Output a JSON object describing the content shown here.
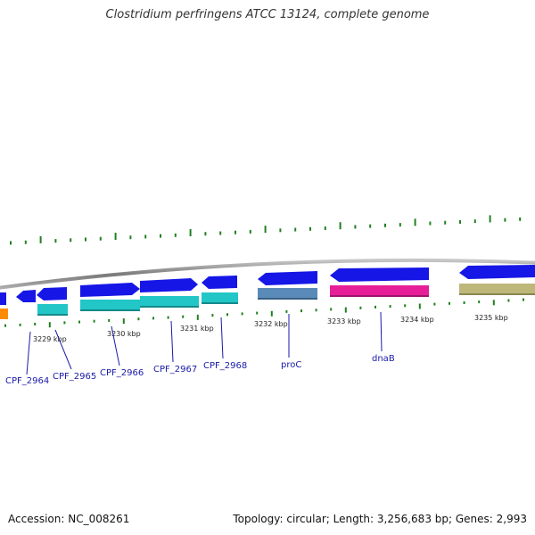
{
  "title": "Clostridium perfringens ATCC 13124, complete genome",
  "footer": {
    "accession": "Accession: NC_008261",
    "summary": "Topology: circular; Length: 3,256,683 bp; Genes: 2,993"
  },
  "colors": {
    "backbone": "#8a8a8a",
    "cds_forward": "#1616e6",
    "cds_reverse": "#1616e6",
    "cog_teal": "#22c6c6",
    "cog_steelblue": "#5a8ab8",
    "cog_magenta": "#e61f99",
    "cog_olive": "#bdb77a",
    "cog_orange": "#ff8c00",
    "gc_skew": "#208020",
    "label": "#1a1aa8"
  },
  "ticks": [
    {
      "label": "3229 kbp"
    },
    {
      "label": "3230 kbp"
    },
    {
      "label": "3231 kbp"
    },
    {
      "label": "3232 kbp"
    },
    {
      "label": "3233 kbp"
    },
    {
      "label": "3234 kbp"
    },
    {
      "label": "3235 kbp"
    }
  ],
  "genes": [
    {
      "label": "CPF_2964",
      "strand": "reverse",
      "cog": "orange"
    },
    {
      "label": "CPF_2965",
      "strand": "reverse",
      "cog": "teal"
    },
    {
      "label": "CPF_2966",
      "strand": "forward",
      "cog": "teal"
    },
    {
      "label": "CPF_2967",
      "strand": "forward",
      "cog": "teal"
    },
    {
      "label": "CPF_2968",
      "strand": "reverse",
      "cog": "teal"
    },
    {
      "label": "proC",
      "strand": "reverse",
      "cog": "steelblue"
    },
    {
      "label": "dnaB",
      "strand": "reverse",
      "cog": "magenta"
    },
    {
      "label": "",
      "strand": "reverse",
      "cog": "olive"
    }
  ]
}
